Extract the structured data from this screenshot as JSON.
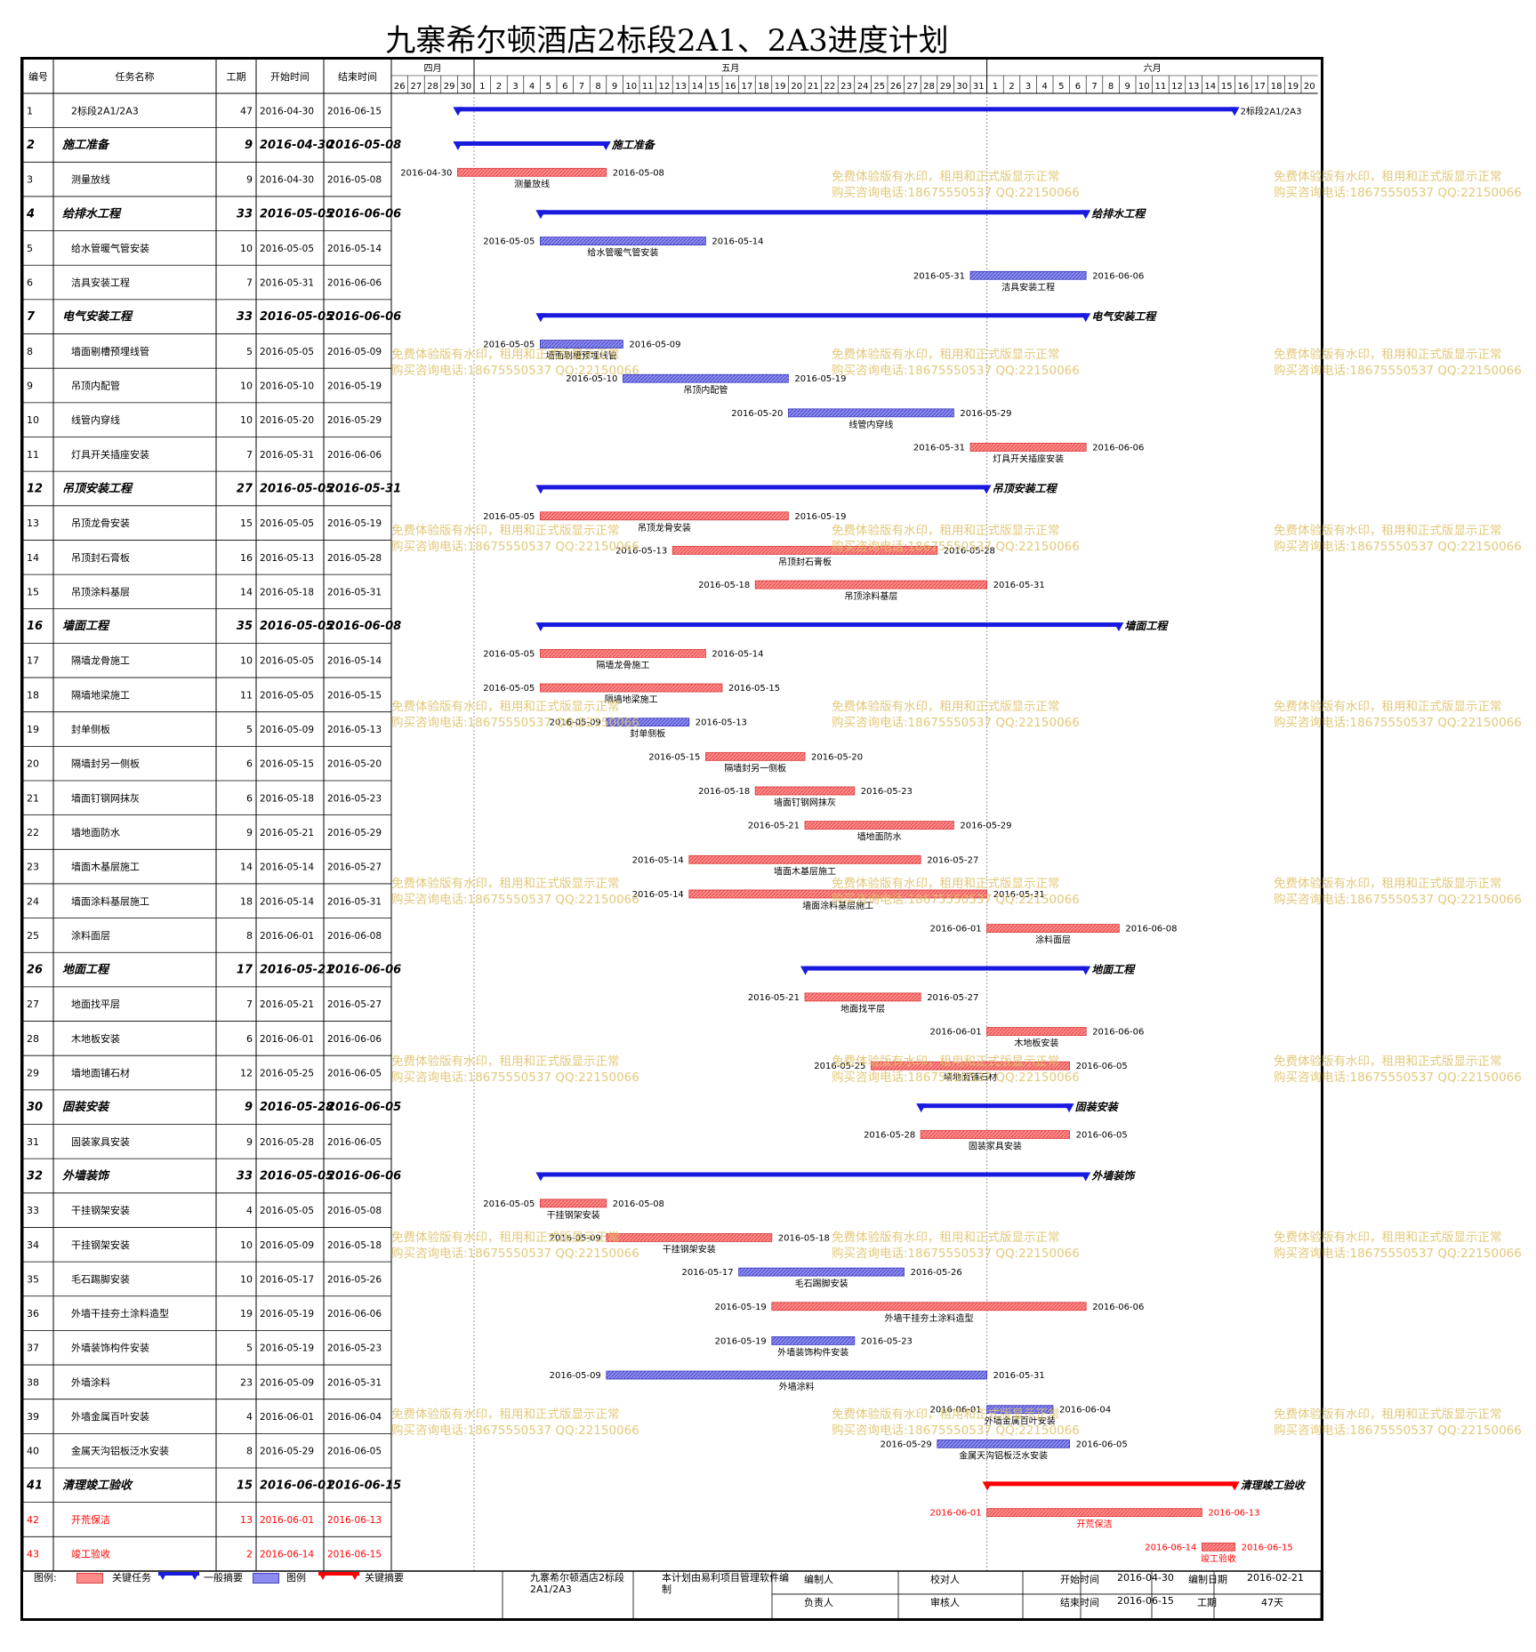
{
  "title": "九寨希尔顿酒店2标段2A1、2A3进度计划",
  "columns": {
    "id": "编号",
    "name": "任务名称",
    "dur": "工期",
    "start": "开始时间",
    "end": "结束时间"
  },
  "months": [
    {
      "label": "四月",
      "days": [
        "26",
        "27",
        "28",
        "29",
        "30"
      ]
    },
    {
      "label": "五月",
      "days": [
        "1",
        "2",
        "3",
        "4",
        "5",
        "6",
        "7",
        "8",
        "9",
        "10",
        "11",
        "12",
        "13",
        "14",
        "15",
        "16",
        "17",
        "18",
        "19",
        "20",
        "21",
        "22",
        "23",
        "24",
        "25",
        "26",
        "27",
        "28",
        "29",
        "30",
        "31"
      ]
    },
    {
      "label": "六月",
      "days": [
        "1",
        "2",
        "3",
        "4",
        "5",
        "6",
        "7",
        "8",
        "9",
        "10",
        "11",
        "12",
        "13",
        "14",
        "15",
        "16",
        "17",
        "18",
        "19",
        "20"
      ]
    }
  ],
  "watermark_lines": [
    "免费体验版有水印，租用和正式版显示正常",
    "购买咨询电话:18675550537 QQ:22150066"
  ],
  "colors": {
    "critical": "#ff6f6f",
    "normal": "#6f6fe6",
    "summary": "#1a1adf",
    "critical_summary": "#ff0000",
    "grid": "#999999",
    "watermark": "#dfc36b"
  },
  "chart_data": {
    "type": "gantt",
    "x_range": [
      "2016-04-26",
      "2016-06-20"
    ],
    "tasks": [
      {
        "id": "1",
        "name": "2标段2A1/2A3",
        "dur": "47",
        "start": "2016-04-30",
        "end": "2016-06-15",
        "kind": "project",
        "bar_label": "2标段2A1/2A3"
      },
      {
        "id": "2",
        "name": "施工准备",
        "dur": "9",
        "start": "2016-04-30",
        "end": "2016-05-08",
        "kind": "summary"
      },
      {
        "id": "3",
        "name": "测量放线",
        "dur": "9",
        "start": "2016-04-30",
        "end": "2016-05-08",
        "kind": "critical"
      },
      {
        "id": "4",
        "name": "给排水工程",
        "dur": "33",
        "start": "2016-05-05",
        "end": "2016-06-06",
        "kind": "summary"
      },
      {
        "id": "5",
        "name": "给水管暖气管安装",
        "dur": "10",
        "start": "2016-05-05",
        "end": "2016-05-14",
        "kind": "normal"
      },
      {
        "id": "6",
        "name": "洁具安装工程",
        "dur": "7",
        "start": "2016-05-31",
        "end": "2016-06-06",
        "kind": "normal"
      },
      {
        "id": "7",
        "name": "电气安装工程",
        "dur": "33",
        "start": "2016-05-05",
        "end": "2016-06-06",
        "kind": "summary"
      },
      {
        "id": "8",
        "name": "墙面剔槽预埋线管",
        "dur": "5",
        "start": "2016-05-05",
        "end": "2016-05-09",
        "kind": "normal"
      },
      {
        "id": "9",
        "name": "吊顶内配管",
        "dur": "10",
        "start": "2016-05-10",
        "end": "2016-05-19",
        "kind": "normal"
      },
      {
        "id": "10",
        "name": "线管内穿线",
        "dur": "10",
        "start": "2016-05-20",
        "end": "2016-05-29",
        "kind": "normal"
      },
      {
        "id": "11",
        "name": "灯具开关插座安装",
        "dur": "7",
        "start": "2016-05-31",
        "end": "2016-06-06",
        "kind": "critical"
      },
      {
        "id": "12",
        "name": "吊顶安装工程",
        "dur": "27",
        "start": "2016-05-05",
        "end": "2016-05-31",
        "kind": "summary"
      },
      {
        "id": "13",
        "name": "吊顶龙骨安装",
        "dur": "15",
        "start": "2016-05-05",
        "end": "2016-05-19",
        "kind": "critical"
      },
      {
        "id": "14",
        "name": "吊顶封石膏板",
        "dur": "16",
        "start": "2016-05-13",
        "end": "2016-05-28",
        "kind": "critical"
      },
      {
        "id": "15",
        "name": "吊顶涂料基层",
        "dur": "14",
        "start": "2016-05-18",
        "end": "2016-05-31",
        "kind": "critical"
      },
      {
        "id": "16",
        "name": "墙面工程",
        "dur": "35",
        "start": "2016-05-05",
        "end": "2016-06-08",
        "kind": "summary"
      },
      {
        "id": "17",
        "name": "隔墙龙骨施工",
        "dur": "10",
        "start": "2016-05-05",
        "end": "2016-05-14",
        "kind": "critical"
      },
      {
        "id": "18",
        "name": "隔墙地梁施工",
        "dur": "11",
        "start": "2016-05-05",
        "end": "2016-05-15",
        "kind": "critical"
      },
      {
        "id": "19",
        "name": "封单侧板",
        "dur": "5",
        "start": "2016-05-09",
        "end": "2016-05-13",
        "kind": "normal"
      },
      {
        "id": "20",
        "name": "隔墙封另一侧板",
        "dur": "6",
        "start": "2016-05-15",
        "end": "2016-05-20",
        "kind": "critical"
      },
      {
        "id": "21",
        "name": "墙面钉钢网抹灰",
        "dur": "6",
        "start": "2016-05-18",
        "end": "2016-05-23",
        "kind": "critical"
      },
      {
        "id": "22",
        "name": "墙地面防水",
        "dur": "9",
        "start": "2016-05-21",
        "end": "2016-05-29",
        "kind": "critical"
      },
      {
        "id": "23",
        "name": "墙面木基层施工",
        "dur": "14",
        "start": "2016-05-14",
        "end": "2016-05-27",
        "kind": "critical"
      },
      {
        "id": "24",
        "name": "墙面涂料基层施工",
        "dur": "18",
        "start": "2016-05-14",
        "end": "2016-05-31",
        "kind": "critical"
      },
      {
        "id": "25",
        "name": "涂料面层",
        "dur": "8",
        "start": "2016-06-01",
        "end": "2016-06-08",
        "kind": "critical"
      },
      {
        "id": "26",
        "name": "地面工程",
        "dur": "17",
        "start": "2016-05-21",
        "end": "2016-06-06",
        "kind": "summary"
      },
      {
        "id": "27",
        "name": "地面找平层",
        "dur": "7",
        "start": "2016-05-21",
        "end": "2016-05-27",
        "kind": "critical"
      },
      {
        "id": "28",
        "name": "木地板安装",
        "dur": "6",
        "start": "2016-06-01",
        "end": "2016-06-06",
        "kind": "critical"
      },
      {
        "id": "29",
        "name": "墙地面铺石材",
        "dur": "12",
        "start": "2016-05-25",
        "end": "2016-06-05",
        "kind": "critical"
      },
      {
        "id": "30",
        "name": "固装安装",
        "dur": "9",
        "start": "2016-05-28",
        "end": "2016-06-05",
        "kind": "summary"
      },
      {
        "id": "31",
        "name": "固装家具安装",
        "dur": "9",
        "start": "2016-05-28",
        "end": "2016-06-05",
        "kind": "critical"
      },
      {
        "id": "32",
        "name": "外墙装饰",
        "dur": "33",
        "start": "2016-05-05",
        "end": "2016-06-06",
        "kind": "summary"
      },
      {
        "id": "33",
        "name": "干挂钢架安装",
        "dur": "4",
        "start": "2016-05-05",
        "end": "2016-05-08",
        "kind": "critical"
      },
      {
        "id": "34",
        "name": "干挂钢架安装",
        "dur": "10",
        "start": "2016-05-09",
        "end": "2016-05-18",
        "kind": "critical"
      },
      {
        "id": "35",
        "name": "毛石踢脚安装",
        "dur": "10",
        "start": "2016-05-17",
        "end": "2016-05-26",
        "kind": "normal"
      },
      {
        "id": "36",
        "name": "外墙干挂夯土涂料造型",
        "dur": "19",
        "start": "2016-05-19",
        "end": "2016-06-06",
        "kind": "critical"
      },
      {
        "id": "37",
        "name": "外墙装饰构件安装",
        "dur": "5",
        "start": "2016-05-19",
        "end": "2016-05-23",
        "kind": "normal"
      },
      {
        "id": "38",
        "name": "外墙涂料",
        "dur": "23",
        "start": "2016-05-09",
        "end": "2016-05-31",
        "kind": "normal"
      },
      {
        "id": "39",
        "name": "外墙金属百叶安装",
        "dur": "4",
        "start": "2016-06-01",
        "end": "2016-06-04",
        "kind": "normal"
      },
      {
        "id": "40",
        "name": "金属天沟铝板泛水安装",
        "dur": "8",
        "start": "2016-05-29",
        "end": "2016-06-05",
        "kind": "normal"
      },
      {
        "id": "41",
        "name": "清理竣工验收",
        "dur": "15",
        "start": "2016-06-01",
        "end": "2016-06-15",
        "kind": "critical_summary"
      },
      {
        "id": "42",
        "name": "开荒保洁",
        "dur": "13",
        "start": "2016-06-01",
        "end": "2016-06-13",
        "kind": "critical",
        "red_text": true
      },
      {
        "id": "43",
        "name": "竣工验收",
        "dur": "2",
        "start": "2016-06-14",
        "end": "2016-06-15",
        "kind": "critical",
        "red_text": true
      }
    ]
  },
  "footer": {
    "legend_label": "图例:",
    "legend_items": [
      "关键任务",
      "一般摘要",
      "图例",
      "关键摘要"
    ],
    "project_name": "九寨希尔顿酒店2标段2A1/2A3",
    "software": "本计划由易利项目管理软件编制",
    "prepared_by": "编制人",
    "checked_by": "校对人",
    "responsible": "负责人",
    "reviewer": "审核人",
    "start_label": "开始时间",
    "start_value": "2016-04-30",
    "end_label": "结束时间",
    "end_value": "2016-06-15",
    "date_label": "编制日期",
    "date_value": "2016-02-21",
    "dur_label": "工期",
    "dur_value": "47天"
  }
}
